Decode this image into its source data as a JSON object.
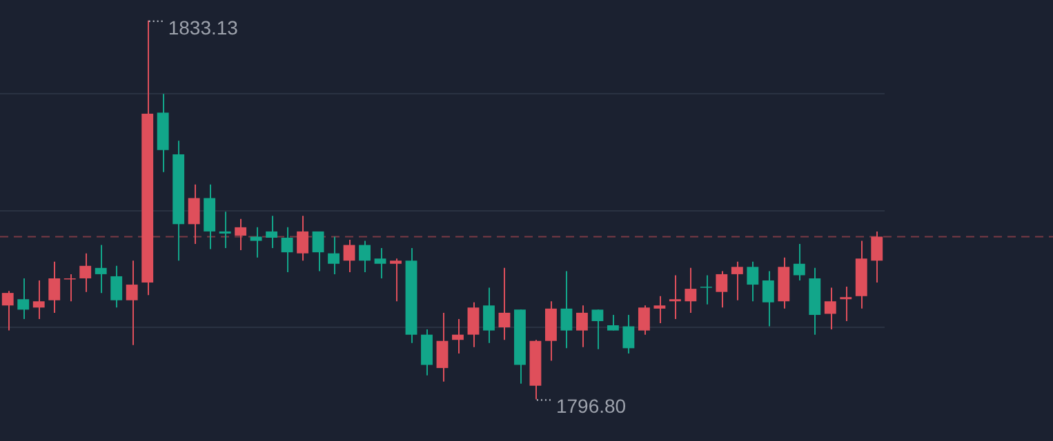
{
  "chart_data": {
    "type": "candlestick",
    "categories": [
      null,
      null,
      null,
      null,
      null,
      null,
      null,
      null,
      null,
      null,
      null,
      null,
      null,
      null,
      null,
      null,
      null,
      null,
      null,
      null,
      null,
      null,
      null,
      null,
      null,
      null,
      null,
      null,
      null,
      null,
      null,
      null,
      null,
      null,
      null,
      null,
      null,
      null,
      null,
      null,
      null,
      null,
      null,
      null,
      null,
      null,
      null,
      null,
      null,
      null,
      null,
      null,
      null,
      null,
      null,
      null,
      null
    ],
    "ohlc": [
      [
        1805.8,
        1807.2,
        1803.4,
        1807.0
      ],
      [
        1806.4,
        1808.4,
        1804.5,
        1805.4
      ],
      [
        1805.6,
        1808.2,
        1804.5,
        1806.2
      ],
      [
        1806.3,
        1810.0,
        1805.1,
        1808.4
      ],
      [
        1808.3,
        1808.8,
        1806.2,
        1808.4
      ],
      [
        1808.4,
        1810.8,
        1807.1,
        1809.6
      ],
      [
        1809.4,
        1811.6,
        1807.0,
        1808.8
      ],
      [
        1808.6,
        1809.6,
        1805.6,
        1806.3
      ],
      [
        1806.3,
        1810.1,
        1802.0,
        1807.8
      ],
      [
        1808.0,
        1833.13,
        1806.8,
        1824.2
      ],
      [
        1824.3,
        1826.1,
        1818.6,
        1820.7
      ],
      [
        1820.3,
        1821.6,
        1810.1,
        1813.6
      ],
      [
        1813.6,
        1817.4,
        1811.7,
        1816.1
      ],
      [
        1816.1,
        1817.4,
        1811.2,
        1812.9
      ],
      [
        1812.9,
        1814.8,
        1811.3,
        1812.7
      ],
      [
        1812.5,
        1814.1,
        1811.1,
        1813.3
      ],
      [
        1812.4,
        1813.3,
        1810.4,
        1812.0
      ],
      [
        1812.9,
        1814.4,
        1811.3,
        1812.3
      ],
      [
        1812.3,
        1813.3,
        1809.0,
        1810.9
      ],
      [
        1810.8,
        1814.4,
        1810.1,
        1812.9
      ],
      [
        1812.9,
        1812.9,
        1809.1,
        1810.9
      ],
      [
        1810.8,
        1812.4,
        1808.8,
        1809.8
      ],
      [
        1810.1,
        1812.1,
        1809.0,
        1811.6
      ],
      [
        1811.6,
        1812.0,
        1809.0,
        1810.1
      ],
      [
        1810.3,
        1811.3,
        1808.4,
        1809.8
      ],
      [
        1809.8,
        1810.3,
        1806.2,
        1810.1
      ],
      [
        1810.1,
        1811.3,
        1802.2,
        1803.0
      ],
      [
        1803.0,
        1803.5,
        1799.1,
        1800.1
      ],
      [
        1799.8,
        1805.1,
        1798.5,
        1802.4
      ],
      [
        1802.5,
        1804.5,
        1801.2,
        1803.0
      ],
      [
        1803.0,
        1806.1,
        1801.8,
        1805.6
      ],
      [
        1805.8,
        1807.5,
        1802.2,
        1803.4
      ],
      [
        1803.7,
        1809.4,
        1802.5,
        1805.1
      ],
      [
        1805.4,
        1805.4,
        1798.3,
        1800.1
      ],
      [
        1798.1,
        1802.5,
        1796.8,
        1802.4
      ],
      [
        1802.4,
        1806.2,
        1800.5,
        1805.5
      ],
      [
        1805.5,
        1809.1,
        1801.7,
        1803.4
      ],
      [
        1803.4,
        1805.8,
        1801.8,
        1805.1
      ],
      [
        1805.4,
        1805.4,
        1801.6,
        1804.3
      ],
      [
        1803.9,
        1804.9,
        1803.4,
        1803.4
      ],
      [
        1803.8,
        1804.9,
        1801.2,
        1801.7
      ],
      [
        1803.4,
        1805.8,
        1803.0,
        1805.6
      ],
      [
        1805.5,
        1806.7,
        1804.1,
        1805.8
      ],
      [
        1806.2,
        1808.7,
        1804.5,
        1806.4
      ],
      [
        1806.2,
        1809.4,
        1805.1,
        1807.4
      ],
      [
        1807.6,
        1808.7,
        1805.9,
        1807.5
      ],
      [
        1807.1,
        1809.1,
        1805.6,
        1808.8
      ],
      [
        1808.8,
        1810.0,
        1806.3,
        1809.5
      ],
      [
        1809.5,
        1810.0,
        1806.2,
        1807.8
      ],
      [
        1808.2,
        1809.1,
        1803.8,
        1806.1
      ],
      [
        1806.2,
        1810.4,
        1805.5,
        1809.5
      ],
      [
        1809.8,
        1811.7,
        1808.2,
        1808.7
      ],
      [
        1808.4,
        1809.4,
        1803.0,
        1804.9
      ],
      [
        1805.0,
        1807.5,
        1803.5,
        1806.2
      ],
      [
        1806.4,
        1807.6,
        1804.3,
        1806.6
      ],
      [
        1806.7,
        1812.0,
        1805.5,
        1810.3
      ],
      [
        1810.1,
        1812.9,
        1808.0,
        1812.4
      ]
    ],
    "colors": [
      "#df4f5b",
      "#12a68a",
      "#df4f5b",
      "#df4f5b",
      "#df4f5b",
      "#df4f5b",
      "#12a68a",
      "#12a68a",
      "#df4f5b",
      "#df4f5b",
      "#12a68a",
      "#12a68a",
      "#df4f5b",
      "#12a68a",
      "#12a68a",
      "#df4f5b",
      "#12a68a",
      "#12a68a",
      "#12a68a",
      "#df4f5b",
      "#12a68a",
      "#12a68a",
      "#df4f5b",
      "#12a68a",
      "#12a68a",
      "#df4f5b",
      "#12a68a",
      "#12a68a",
      "#df4f5b",
      "#df4f5b",
      "#df4f5b",
      "#12a68a",
      "#df4f5b",
      "#12a68a",
      "#df4f5b",
      "#df4f5b",
      "#12a68a",
      "#df4f5b",
      "#12a68a",
      "#12a68a",
      "#12a68a",
      "#df4f5b",
      "#df4f5b",
      "#df4f5b",
      "#df4f5b",
      "#12a68a",
      "#df4f5b",
      "#df4f5b",
      "#12a68a",
      "#12a68a",
      "#df4f5b",
      "#12a68a",
      "#12a68a",
      "#df4f5b",
      "#df4f5b",
      "#df4f5b",
      "#df4f5b"
    ],
    "ylim": [
      1792.8,
      1835.1
    ],
    "yticks": [
      {
        "value": 1803.7,
        "label": null
      },
      {
        "value": 1814.9,
        "label": null
      },
      {
        "value": 1826.1,
        "label": null
      }
    ],
    "grid": "y",
    "legend": false,
    "ref_lines": [
      {
        "axis": "y",
        "value": 1812.4,
        "color": "#7a3a44",
        "line_style": "dashed"
      }
    ],
    "annotations": [
      "1833.13",
      "1796.80"
    ]
  }
}
